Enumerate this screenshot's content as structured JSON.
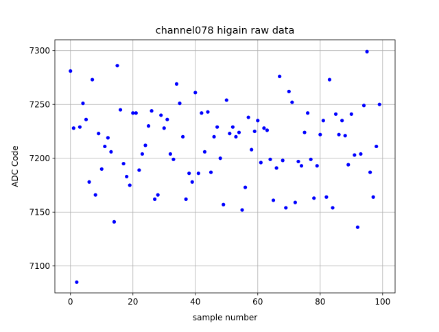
{
  "chart_data": {
    "type": "scatter",
    "title": "channel078 higain raw data",
    "xlabel": "sample number",
    "ylabel": "ADC Code",
    "xlim": [
      -5,
      104
    ],
    "ylim": [
      7075,
      7310
    ],
    "xticks": [
      0,
      20,
      40,
      60,
      80,
      100
    ],
    "yticks": [
      7100,
      7150,
      7200,
      7250,
      7300
    ],
    "grid": true,
    "marker_color": "#0000ff",
    "series": [
      {
        "x": [
          0,
          1,
          2,
          3,
          4,
          5,
          6,
          7,
          8,
          9,
          10,
          11,
          12,
          13,
          14,
          15,
          16,
          17,
          18,
          19,
          20,
          21,
          22,
          23,
          24,
          25,
          26,
          27,
          28,
          29,
          30,
          31,
          32,
          33,
          34,
          35,
          36,
          37,
          38,
          39,
          40,
          41,
          42,
          43,
          44,
          45,
          46,
          47,
          48,
          49,
          50,
          51,
          52,
          53,
          54,
          55,
          56,
          57,
          58,
          59,
          60,
          61,
          62,
          63,
          64,
          65,
          66,
          67,
          68,
          69,
          70,
          71,
          72,
          73,
          74,
          75,
          76,
          77,
          78,
          79,
          80,
          81,
          82,
          83,
          84,
          85,
          86,
          87,
          88,
          89,
          90,
          91,
          92,
          93,
          94,
          95,
          96,
          97,
          98,
          99
        ],
        "values": [
          7281,
          7228,
          7085,
          7229,
          7251,
          7236,
          7178,
          7273,
          7166,
          7223,
          7190,
          7211,
          7219,
          7206,
          7141,
          7286,
          7245,
          7195,
          7183,
          7175,
          7242,
          7242,
          7189,
          7204,
          7212,
          7230,
          7244,
          7162,
          7166,
          7240,
          7228,
          7236,
          7204,
          7199,
          7269,
          7251,
          7220,
          7162,
          7186,
          7178,
          7261,
          7186,
          7242,
          7206,
          7243,
          7187,
          7220,
          7229,
          7200,
          7157,
          7254,
          7223,
          7229,
          7220,
          7224,
          7152,
          7173,
          7238,
          7208,
          7225,
          7235,
          7196,
          7228,
          7226,
          7199,
          7161,
          7191,
          7276,
          7198,
          7154,
          7262,
          7252,
          7159,
          7197,
          7193,
          7224,
          7242,
          7199,
          7163,
          7193,
          7222,
          7235,
          7164,
          7273,
          7154,
          7241,
          7222,
          7235,
          7221,
          7194,
          7241,
          7203,
          7136,
          7204,
          7249,
          7299,
          7187,
          7164,
          7211,
          7250
        ]
      }
    ]
  }
}
